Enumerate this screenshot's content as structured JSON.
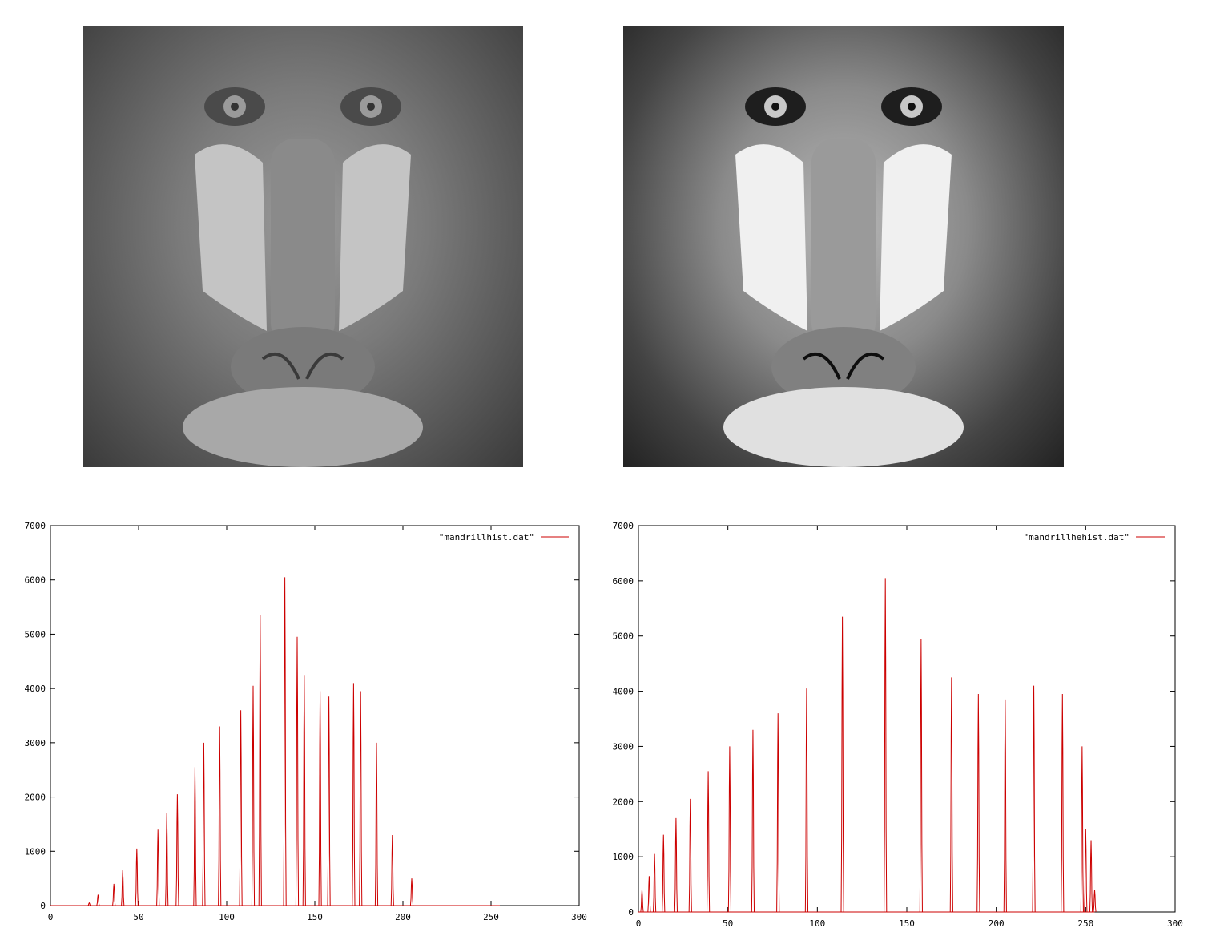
{
  "images": {
    "original": {
      "subject": "mandrill face, grayscale, low contrast"
    },
    "equalized": {
      "subject": "mandrill face, grayscale, histogram equalized, high contrast"
    }
  },
  "colors": {
    "series": "#cc0000",
    "axis": "#000000",
    "background": "#ffffff"
  },
  "chart_data": [
    {
      "type": "line",
      "legend": "\"mandrillhist.dat\"",
      "legend_position": "top-right",
      "grid": false,
      "xlim": [
        0,
        300
      ],
      "ylim": [
        0,
        7000
      ],
      "xticks": [
        0,
        50,
        100,
        150,
        200,
        250,
        300
      ],
      "yticks": [
        0,
        1000,
        2000,
        3000,
        4000,
        5000,
        6000,
        7000
      ],
      "series": [
        {
          "peaks": [
            [
              22,
              50
            ],
            [
              27,
              200
            ],
            [
              36,
              400
            ],
            [
              41,
              650
            ],
            [
              49,
              1050
            ],
            [
              61,
              1400
            ],
            [
              66,
              1700
            ],
            [
              72,
              2050
            ],
            [
              82,
              2550
            ],
            [
              87,
              3000
            ],
            [
              96,
              3300
            ],
            [
              108,
              3600
            ],
            [
              115,
              4050
            ],
            [
              119,
              5350
            ],
            [
              133,
              6050
            ],
            [
              140,
              4950
            ],
            [
              144,
              4250
            ],
            [
              153,
              3950
            ],
            [
              158,
              3850
            ],
            [
              172,
              4100
            ],
            [
              176,
              3950
            ],
            [
              185,
              3000
            ],
            [
              194,
              1300
            ],
            [
              205,
              500
            ]
          ]
        }
      ]
    },
    {
      "type": "line",
      "legend": "\"mandrillhehist.dat\"",
      "legend_position": "top-right",
      "grid": false,
      "xlim": [
        0,
        300
      ],
      "ylim": [
        0,
        7000
      ],
      "xticks": [
        0,
        50,
        100,
        150,
        200,
        250,
        300
      ],
      "yticks": [
        0,
        1000,
        2000,
        3000,
        4000,
        5000,
        6000,
        7000
      ],
      "series": [
        {
          "peaks": [
            [
              2,
              400
            ],
            [
              6,
              650
            ],
            [
              9,
              1050
            ],
            [
              14,
              1400
            ],
            [
              21,
              1700
            ],
            [
              29,
              2050
            ],
            [
              39,
              2550
            ],
            [
              51,
              3000
            ],
            [
              64,
              3300
            ],
            [
              78,
              3600
            ],
            [
              94,
              4050
            ],
            [
              114,
              5350
            ],
            [
              138,
              6050
            ],
            [
              158,
              4950
            ],
            [
              175,
              4250
            ],
            [
              190,
              3950
            ],
            [
              205,
              3850
            ],
            [
              221,
              4100
            ],
            [
              237,
              3950
            ],
            [
              248,
              3000
            ],
            [
              250,
              1500
            ],
            [
              253,
              1300
            ],
            [
              255,
              400
            ]
          ]
        }
      ]
    }
  ]
}
